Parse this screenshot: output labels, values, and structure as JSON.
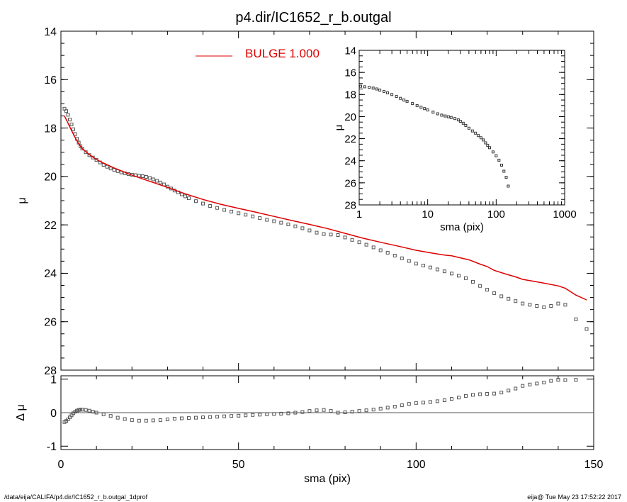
{
  "title": "p4.dir/IC1652_r_b.outgal",
  "footer_left": "/data/eija/CALIFA/p4.dir/IC1652_r_b.outgal_1dprof",
  "footer_right": "eija@  Tue May 23 17:52:22 2017",
  "colors": {
    "model": "#dd0000",
    "points": "#555555",
    "axis": "#000000"
  },
  "chart_data": [
    {
      "id": "main",
      "type": "scatter",
      "title": "",
      "xlabel": "",
      "ylabel": "μ",
      "xlim": [
        0,
        150
      ],
      "ylim": [
        28,
        14
      ],
      "y_inverted": true,
      "x_ticks": [],
      "y_ticks": [
        14,
        16,
        18,
        20,
        22,
        24,
        26,
        28
      ],
      "y_tick_labels": [
        "14",
        "16",
        "18",
        "20",
        "22",
        "24",
        "26",
        "28"
      ],
      "legend": {
        "label": "BULGE  1.000",
        "placement": "top-center"
      },
      "series": [
        {
          "name": "data",
          "kind": "points",
          "x": [
            1,
            1.5,
            2,
            2.5,
            3,
            3.5,
            4,
            4.5,
            5,
            5.5,
            6,
            7,
            8,
            9,
            10,
            11,
            12,
            13,
            14,
            15,
            16,
            17,
            18,
            19,
            20,
            21,
            22,
            23,
            24,
            25,
            26,
            27,
            28,
            29,
            30,
            31,
            32,
            33,
            34,
            35,
            36,
            38,
            40,
            42,
            44,
            46,
            48,
            50,
            52,
            54,
            56,
            58,
            60,
            62,
            64,
            66,
            68,
            70,
            72,
            74,
            76,
            78,
            80,
            82,
            84,
            86,
            88,
            90,
            92,
            94,
            96,
            98,
            100,
            102,
            104,
            106,
            108,
            110,
            112,
            114,
            116,
            118,
            120,
            122,
            124,
            126,
            128,
            130,
            132,
            134,
            136,
            138,
            140,
            142,
            145,
            148
          ],
          "y": [
            17.2,
            17.3,
            17.45,
            17.65,
            17.85,
            18.05,
            18.25,
            18.45,
            18.6,
            18.75,
            18.85,
            19.0,
            19.12,
            19.22,
            19.32,
            19.42,
            19.52,
            19.6,
            19.67,
            19.73,
            19.78,
            19.83,
            19.87,
            19.9,
            19.93,
            19.95,
            19.97,
            19.99,
            20.02,
            20.06,
            20.12,
            20.18,
            20.25,
            20.33,
            20.42,
            20.5,
            20.58,
            20.66,
            20.74,
            20.82,
            20.9,
            21.02,
            21.12,
            21.22,
            21.3,
            21.38,
            21.45,
            21.52,
            21.58,
            21.65,
            21.72,
            21.79,
            21.85,
            21.91,
            21.98,
            22.06,
            22.14,
            22.23,
            22.32,
            22.38,
            22.4,
            22.42,
            22.52,
            22.62,
            22.72,
            22.82,
            22.93,
            23.05,
            23.15,
            23.27,
            23.38,
            23.49,
            23.6,
            23.68,
            23.76,
            23.84,
            23.92,
            24.01,
            24.1,
            24.2,
            24.35,
            24.52,
            24.68,
            24.82,
            24.95,
            25.05,
            25.15,
            25.25,
            25.3,
            25.35,
            25.4,
            25.35,
            25.25,
            25.3,
            25.9,
            26.3
          ]
        },
        {
          "name": "BULGE",
          "kind": "line",
          "x": [
            1,
            2,
            3,
            4,
            5,
            6,
            8,
            10,
            12,
            15,
            20,
            25,
            30,
            35,
            40,
            45,
            50,
            55,
            60,
            65,
            70,
            75,
            80,
            85,
            90,
            95,
            100,
            105,
            108,
            110,
            115,
            118,
            120,
            122,
            125,
            128,
            130,
            135,
            140,
            142,
            145,
            148
          ],
          "y": [
            17.5,
            17.8,
            18.1,
            18.4,
            18.65,
            18.85,
            19.1,
            19.3,
            19.45,
            19.65,
            19.95,
            20.2,
            20.45,
            20.72,
            20.95,
            21.15,
            21.32,
            21.48,
            21.65,
            21.82,
            21.98,
            22.15,
            22.35,
            22.55,
            22.72,
            22.88,
            23.05,
            23.18,
            23.25,
            23.28,
            23.45,
            23.62,
            23.72,
            23.88,
            24.02,
            24.15,
            24.25,
            24.38,
            24.52,
            24.62,
            24.9,
            25.1
          ]
        }
      ]
    },
    {
      "id": "residual",
      "type": "scatter",
      "title": "",
      "xlabel": "sma (pix)",
      "ylabel": "Δ μ",
      "xlim": [
        0,
        150
      ],
      "ylim": [
        -1.1,
        1.1
      ],
      "x_ticks": [
        0,
        50,
        100,
        150
      ],
      "x_tick_labels": [
        "0",
        "50",
        "100",
        "150"
      ],
      "y_ticks": [
        -1,
        0,
        1
      ],
      "y_tick_labels": [
        "-1",
        "0",
        "1"
      ],
      "zero_line": true,
      "series": [
        {
          "name": "residual",
          "kind": "points",
          "x": [
            1,
            1.5,
            2,
            2.5,
            3,
            3.5,
            4,
            4.5,
            5,
            5.5,
            6,
            7,
            8,
            9,
            10,
            12,
            14,
            16,
            18,
            20,
            22,
            24,
            26,
            28,
            30,
            32,
            34,
            36,
            38,
            40,
            42,
            44,
            46,
            48,
            50,
            52,
            54,
            56,
            58,
            60,
            62,
            64,
            66,
            68,
            70,
            72,
            74,
            76,
            78,
            80,
            82,
            84,
            86,
            88,
            90,
            92,
            94,
            96,
            98,
            100,
            102,
            104,
            106,
            108,
            110,
            112,
            114,
            116,
            118,
            120,
            122,
            124,
            126,
            128,
            130,
            132,
            134,
            136,
            138,
            140,
            142,
            145
          ],
          "y": [
            -0.28,
            -0.25,
            -0.2,
            -0.14,
            -0.08,
            -0.02,
            0.03,
            0.06,
            0.08,
            0.09,
            0.09,
            0.08,
            0.06,
            0.03,
            0.0,
            -0.05,
            -0.1,
            -0.15,
            -0.19,
            -0.22,
            -0.24,
            -0.24,
            -0.23,
            -0.22,
            -0.2,
            -0.18,
            -0.17,
            -0.16,
            -0.15,
            -0.14,
            -0.13,
            -0.12,
            -0.11,
            -0.1,
            -0.09,
            -0.08,
            -0.07,
            -0.06,
            -0.05,
            -0.04,
            -0.03,
            -0.02,
            0.0,
            0.02,
            0.05,
            0.07,
            0.08,
            0.05,
            0.0,
            0.01,
            0.03,
            0.05,
            0.07,
            0.09,
            0.12,
            0.15,
            0.18,
            0.22,
            0.26,
            0.29,
            0.3,
            0.32,
            0.34,
            0.37,
            0.41,
            0.45,
            0.5,
            0.53,
            0.55,
            0.56,
            0.57,
            0.6,
            0.66,
            0.72,
            0.8,
            0.84,
            0.87,
            0.9,
            0.95,
            0.98,
            0.97,
            0.98
          ]
        }
      ]
    },
    {
      "id": "inset",
      "type": "scatter",
      "title": "",
      "xlabel": "sma (pix)",
      "ylabel": "μ",
      "x_log": true,
      "xlim": [
        1,
        1000
      ],
      "ylim": [
        28,
        14
      ],
      "y_inverted": true,
      "x_ticks": [
        1,
        10,
        100,
        1000
      ],
      "x_tick_labels": [
        "1",
        "10",
        "100",
        "1000"
      ],
      "y_ticks": [
        14,
        16,
        18,
        20,
        22,
        24,
        26,
        28
      ],
      "y_tick_labels": [
        "14",
        "16",
        "18",
        "20",
        "22",
        "24",
        "26",
        "28"
      ],
      "series": [
        {
          "name": "profile",
          "kind": "points",
          "x": [
            1.05,
            1.2,
            1.4,
            1.6,
            1.8,
            2,
            2.3,
            2.6,
            3,
            3.5,
            4,
            4.5,
            5,
            6,
            7,
            8,
            9,
            10,
            12,
            14,
            16,
            18,
            20,
            22,
            25,
            28,
            30,
            33,
            36,
            40,
            45,
            50,
            55,
            60,
            65,
            70,
            75,
            80,
            90,
            100,
            110,
            120,
            130,
            140,
            150
          ],
          "y": [
            17.25,
            17.3,
            17.35,
            17.42,
            17.5,
            17.6,
            17.72,
            17.85,
            18.0,
            18.18,
            18.35,
            18.5,
            18.62,
            18.82,
            19.0,
            19.15,
            19.28,
            19.4,
            19.6,
            19.75,
            19.87,
            19.95,
            20.02,
            20.08,
            20.18,
            20.3,
            20.42,
            20.6,
            20.8,
            21.05,
            21.3,
            21.5,
            21.72,
            21.92,
            22.12,
            22.38,
            22.6,
            22.82,
            23.2,
            23.55,
            23.95,
            24.4,
            24.95,
            25.5,
            26.3
          ]
        }
      ]
    }
  ]
}
